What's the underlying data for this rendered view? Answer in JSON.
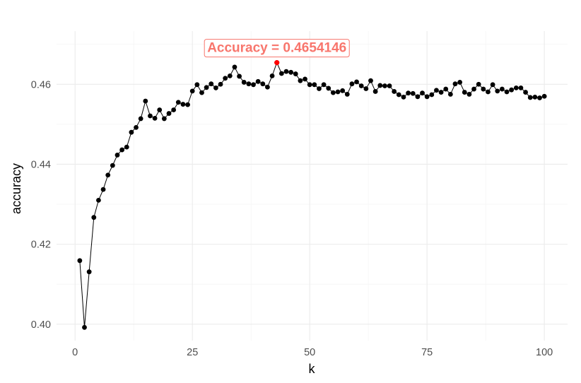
{
  "colors": {
    "line": "#000000",
    "points": "#000000",
    "highlight": "#ff0000",
    "annotation": "#f8766d",
    "grid_major": "#ebebeb",
    "grid_minor": "#f5f5f5",
    "background": "#ffffff"
  },
  "chart_data": {
    "type": "line",
    "title": "",
    "xlabel": "k",
    "ylabel": "accuracy",
    "xlim": [
      -3.95,
      104.95
    ],
    "ylim": [
      0.3959,
      0.4733
    ],
    "xticks": [
      0,
      25,
      50,
      75,
      100
    ],
    "xtick_labels": [
      "0",
      "25",
      "50",
      "75",
      "100"
    ],
    "yticks": [
      0.4,
      0.42,
      0.44,
      0.46
    ],
    "ytick_labels": [
      "0.40",
      "0.42",
      "0.44",
      "0.46"
    ],
    "grid": true,
    "legend": "none",
    "x": [
      1,
      2,
      3,
      4,
      5,
      6,
      7,
      8,
      9,
      10,
      11,
      12,
      13,
      14,
      15,
      16,
      17,
      18,
      19,
      20,
      21,
      22,
      23,
      24,
      25,
      26,
      27,
      28,
      29,
      30,
      31,
      32,
      33,
      34,
      35,
      36,
      37,
      38,
      39,
      40,
      41,
      42,
      43,
      44,
      45,
      46,
      47,
      48,
      49,
      50,
      51,
      52,
      53,
      54,
      55,
      56,
      57,
      58,
      59,
      60,
      61,
      62,
      63,
      64,
      65,
      66,
      67,
      68,
      69,
      70,
      71,
      72,
      73,
      74,
      75,
      76,
      77,
      78,
      79,
      80,
      81,
      82,
      83,
      84,
      85,
      86,
      87,
      88,
      89,
      90,
      91,
      92,
      93,
      94,
      95,
      96,
      97,
      98,
      99,
      100
    ],
    "y": [
      0.4159,
      0.3992,
      0.4131,
      0.4267,
      0.431,
      0.4337,
      0.4373,
      0.4397,
      0.4423,
      0.4436,
      0.4443,
      0.448,
      0.4492,
      0.4514,
      0.4558,
      0.4521,
      0.4515,
      0.4536,
      0.4514,
      0.4527,
      0.4536,
      0.4555,
      0.455,
      0.4549,
      0.4583,
      0.4599,
      0.4579,
      0.4592,
      0.4601,
      0.4591,
      0.46,
      0.4615,
      0.4621,
      0.4643,
      0.462,
      0.4605,
      0.4601,
      0.4599,
      0.4607,
      0.4601,
      0.4593,
      0.4621,
      0.4654146,
      0.4627,
      0.4632,
      0.463,
      0.4626,
      0.4609,
      0.4613,
      0.4599,
      0.4599,
      0.4589,
      0.4599,
      0.459,
      0.4579,
      0.4581,
      0.4584,
      0.4575,
      0.4601,
      0.4606,
      0.4596,
      0.4589,
      0.4609,
      0.4582,
      0.4597,
      0.4596,
      0.4596,
      0.4582,
      0.4574,
      0.4568,
      0.4578,
      0.4577,
      0.4569,
      0.4578,
      0.4569,
      0.4574,
      0.4585,
      0.458,
      0.4588,
      0.4575,
      0.4601,
      0.4605,
      0.458,
      0.4575,
      0.4588,
      0.46,
      0.4588,
      0.4581,
      0.4599,
      0.4583,
      0.4588,
      0.4581,
      0.4586,
      0.4591,
      0.4591,
      0.458,
      0.4567,
      0.4568,
      0.4566,
      0.457
    ],
    "highlight": {
      "x": 43,
      "y": 0.4654146
    },
    "annotation": "Accuracy = 0.4654146"
  }
}
